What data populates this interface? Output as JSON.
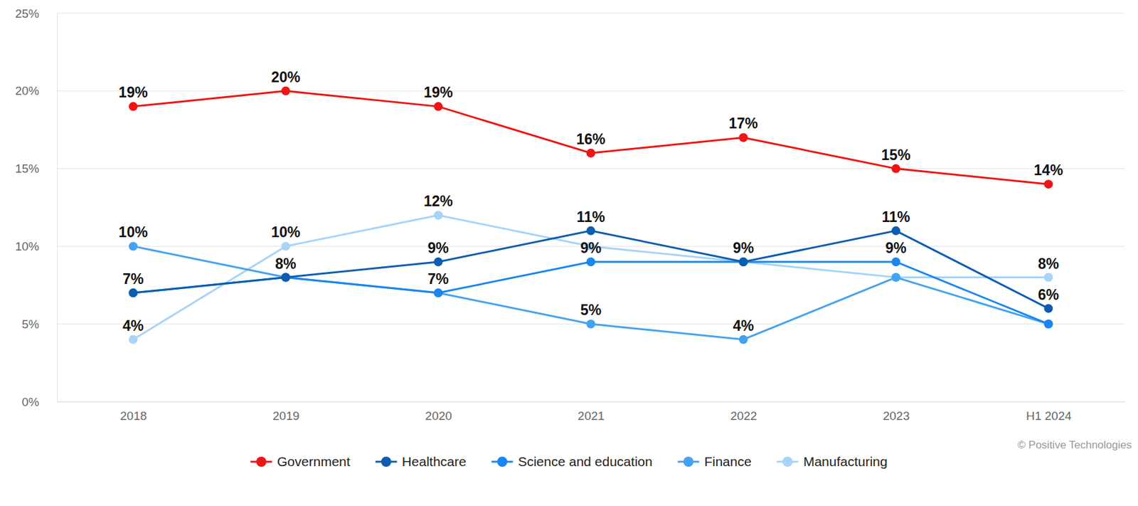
{
  "chart_data": {
    "type": "line",
    "categories": [
      "2018",
      "2019",
      "2020",
      "2021",
      "2022",
      "2023",
      "H1 2024"
    ],
    "ylim": [
      0,
      25
    ],
    "yticks": [
      {
        "value": 0,
        "label": "0%"
      },
      {
        "value": 5,
        "label": "5%"
      },
      {
        "value": 10,
        "label": "10%"
      },
      {
        "value": 15,
        "label": "15%"
      },
      {
        "value": 20,
        "label": "20%"
      },
      {
        "value": 25,
        "label": "25%"
      }
    ],
    "grid": true,
    "legend": "bottom",
    "marker": "circle",
    "data_labels": true,
    "annotations": [
      "© Positive Technologies"
    ],
    "series": [
      {
        "name": "Government",
        "color": "#f01414",
        "values": [
          19,
          20,
          19,
          16,
          17,
          15,
          14
        ],
        "value_labels": [
          "19%",
          "20%",
          "19%",
          "16%",
          "17%",
          "15%",
          "14%"
        ]
      },
      {
        "name": "Healthcare",
        "color": "#0c5db0",
        "values": [
          7,
          8,
          9,
          11,
          9,
          11,
          6
        ],
        "value_labels": [
          "7%",
          "8%",
          "9%",
          "11%",
          "9%",
          "11%",
          "6%"
        ]
      },
      {
        "name": "Science and education",
        "color": "#1a86f0",
        "values": [
          7,
          8,
          7,
          9,
          9,
          9,
          5
        ],
        "value_labels": [
          "7%",
          "8%",
          "7%",
          "9%",
          "9%",
          "9%",
          "5%"
        ]
      },
      {
        "name": "Finance",
        "color": "#45a2f0",
        "values": [
          10,
          8,
          7,
          5,
          4,
          8,
          5
        ],
        "value_labels": [
          "10%",
          "8%",
          "7%",
          "5%",
          "4%",
          "8%",
          "5%"
        ]
      },
      {
        "name": "Manufacturing",
        "color": "#a8d3f8",
        "values": [
          4,
          10,
          12,
          10,
          9,
          8,
          8
        ],
        "value_labels": [
          "4%",
          "10%",
          "12%",
          "10%",
          "9%",
          "8%",
          "8%"
        ]
      }
    ]
  }
}
